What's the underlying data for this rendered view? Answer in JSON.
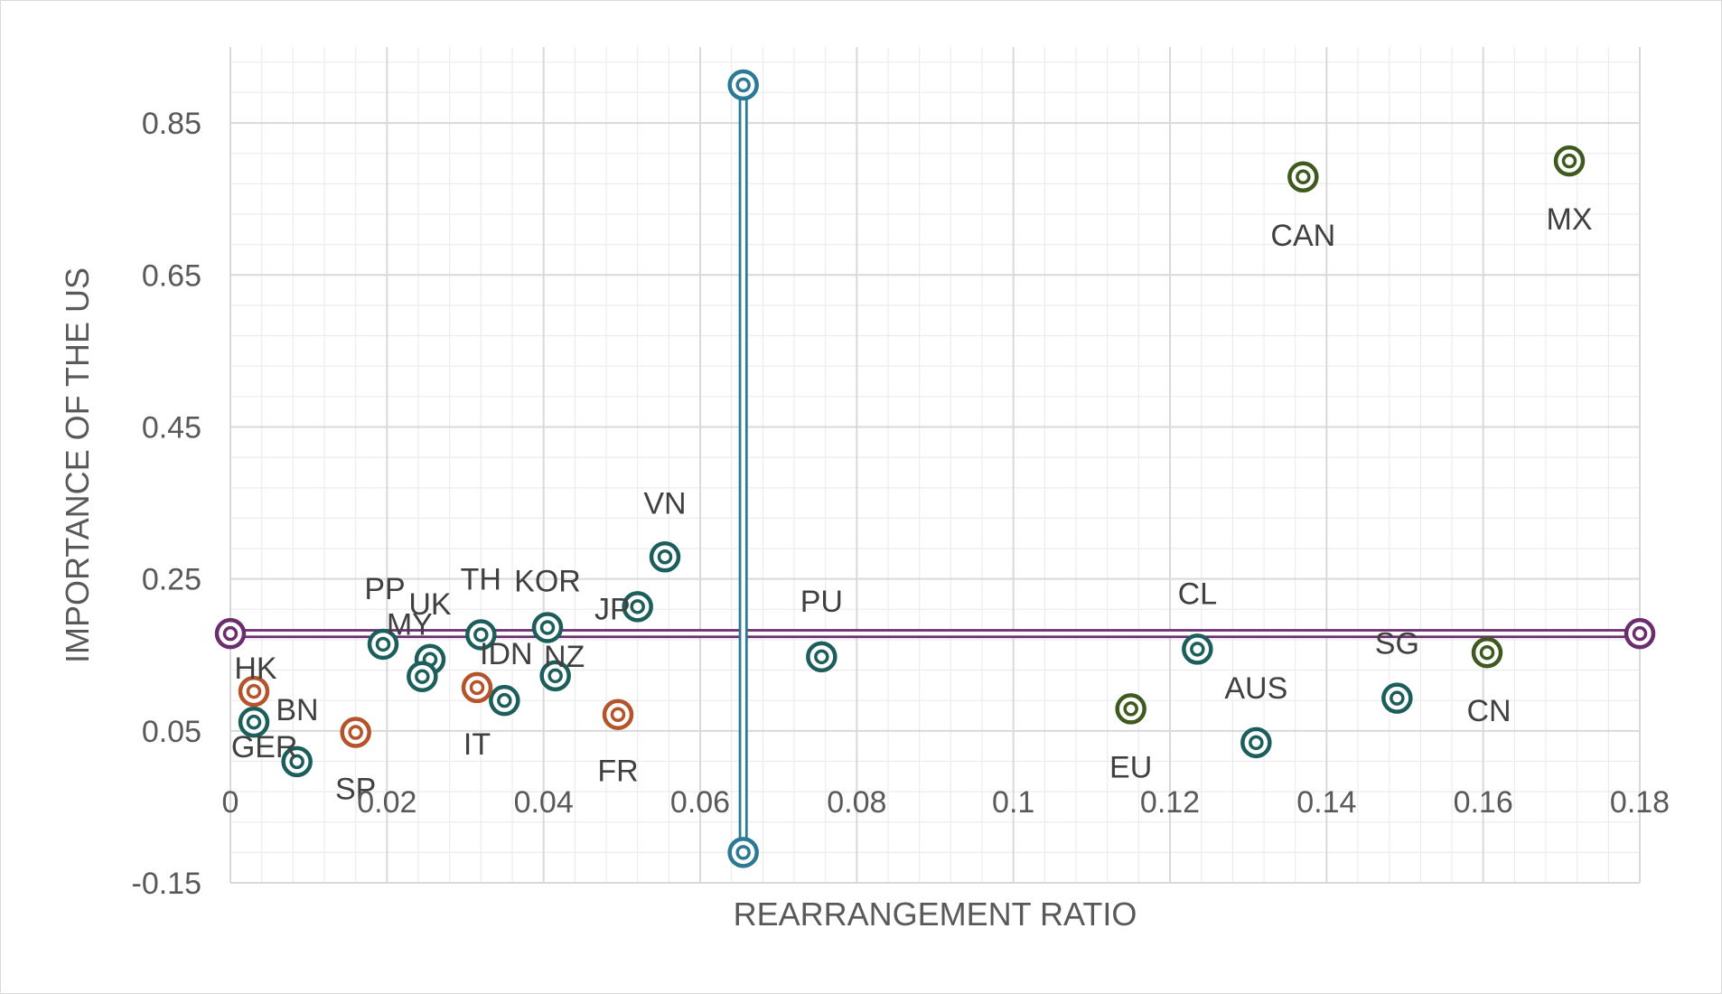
{
  "chart_data": {
    "type": "scatter",
    "title": "",
    "xlabel": "REARRANGEMENT RATIO",
    "ylabel": "IMPORTANCE OF THE US",
    "xlim": [
      0,
      0.18
    ],
    "ylim": [
      -0.15,
      0.95
    ],
    "x_ticks": [
      {
        "value": 0,
        "label": "0"
      },
      {
        "value": 0.02,
        "label": "0.02"
      },
      {
        "value": 0.04,
        "label": "0.04"
      },
      {
        "value": 0.06,
        "label": "0.06"
      },
      {
        "value": 0.08,
        "label": "0.08"
      },
      {
        "value": 0.1,
        "label": "0.1"
      },
      {
        "value": 0.12,
        "label": "0.12"
      },
      {
        "value": 0.14,
        "label": "0.14"
      },
      {
        "value": 0.16,
        "label": "0.16"
      },
      {
        "value": 0.18,
        "label": "0.18"
      }
    ],
    "y_ticks": [
      {
        "value": 0.85,
        "label": "0.85"
      },
      {
        "value": 0.65,
        "label": "0.65"
      },
      {
        "value": 0.45,
        "label": "0.45"
      },
      {
        "value": 0.25,
        "label": "0.25"
      },
      {
        "value": 0.05,
        "label": "0.05"
      },
      {
        "value": -0.15,
        "label": "-0.15"
      }
    ],
    "grid": true,
    "x_axis_crosses_at_y": 0,
    "colors": {
      "teal": "#1b5e5c",
      "orange": "#b5532b",
      "green": "#3f5a1e",
      "purple": "#6b2d6e",
      "vline": "#2a7a95",
      "grid_major": "#d9d9d9",
      "grid_minor": "#ececec"
    },
    "series": [
      {
        "name": "Teal",
        "color_key": "teal",
        "points": [
          {
            "label": "VN",
            "x": 0.0555,
            "y": 0.279
          },
          {
            "label": "JP",
            "x": 0.052,
            "y": 0.2135
          },
          {
            "label": "KOR",
            "x": 0.0405,
            "y": 0.186
          },
          {
            "label": "NZ",
            "x": 0.0415,
            "y": 0.1225
          },
          {
            "label": "TH",
            "x": 0.032,
            "y": 0.1765
          },
          {
            "label": "IDN",
            "x": 0.035,
            "y": 0.09
          },
          {
            "label": "PP",
            "x": 0.0195,
            "y": 0.164
          },
          {
            "label": "UK",
            "x": 0.0255,
            "y": 0.144
          },
          {
            "label": "MY",
            "x": 0.0245,
            "y": 0.1215
          },
          {
            "label": "BN",
            "x": 0.003,
            "y": 0.0615
          },
          {
            "label": "GER",
            "x": 0.0085,
            "y": 0.0095
          },
          {
            "label": "PU",
            "x": 0.0755,
            "y": 0.1475
          },
          {
            "label": "CL",
            "x": 0.1235,
            "y": 0.1575
          },
          {
            "label": "AUS",
            "x": 0.131,
            "y": 0.0345
          },
          {
            "label": "SG",
            "x": 0.149,
            "y": 0.093
          }
        ]
      },
      {
        "name": "Orange",
        "color_key": "orange",
        "points": [
          {
            "label": "HK",
            "x": 0.003,
            "y": 0.102
          },
          {
            "label": "SP",
            "x": 0.016,
            "y": 0.048
          },
          {
            "label": "IT",
            "x": 0.0315,
            "y": 0.107
          },
          {
            "label": "FR",
            "x": 0.0495,
            "y": 0.0715
          }
        ]
      },
      {
        "name": "Green",
        "color_key": "green",
        "points": [
          {
            "label": "CAN",
            "x": 0.137,
            "y": 0.779
          },
          {
            "label": "MX",
            "x": 0.171,
            "y": 0.8
          },
          {
            "label": "CN",
            "x": 0.1605,
            "y": 0.153
          },
          {
            "label": "EU",
            "x": 0.115,
            "y": 0.079
          }
        ]
      }
    ],
    "reference_lines": [
      {
        "name": "Horizontal mean line",
        "color_key": "purple",
        "x": [
          0,
          0.18
        ],
        "y": [
          0.178,
          0.178
        ]
      },
      {
        "name": "Vertical mean line",
        "color_key": "vline",
        "x": [
          0.0655,
          0.0655
        ],
        "y": [
          -0.11,
          0.9
        ]
      }
    ]
  }
}
